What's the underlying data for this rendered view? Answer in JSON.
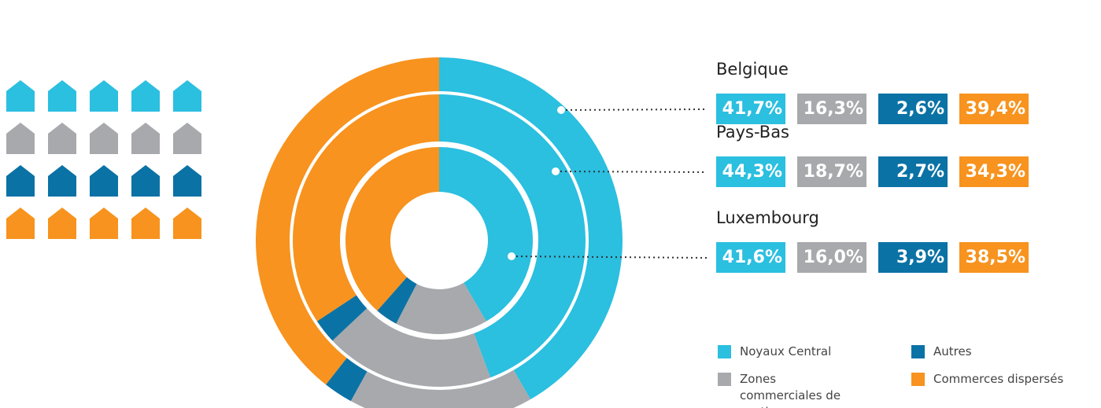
{
  "chart_data": {
    "type": "donut",
    "categories": [
      "Noyaux Central",
      "Zones commerciales de soutien",
      "Autres",
      "Commerces dispersés"
    ],
    "colors": [
      "#2bbfe0",
      "#a7a9ac",
      "#0b72a5",
      "#f7931e"
    ],
    "series": [
      {
        "name": "Belgique",
        "values": [
          41.7,
          16.3,
          2.6,
          39.4
        ],
        "value_labels": [
          "41,7%",
          "16,3%",
          "2,6%",
          "39,4%"
        ]
      },
      {
        "name": "Pays-Bas",
        "values": [
          44.3,
          18.7,
          2.7,
          34.3
        ],
        "value_labels": [
          "44,3%",
          "18,7%",
          "2,7%",
          "34,3%"
        ]
      },
      {
        "name": "Luxembourg",
        "values": [
          41.6,
          16.0,
          3.9,
          38.5
        ],
        "value_labels": [
          "41,6%",
          "16,0%",
          "3,9%",
          "38,5%"
        ]
      }
    ]
  }
}
